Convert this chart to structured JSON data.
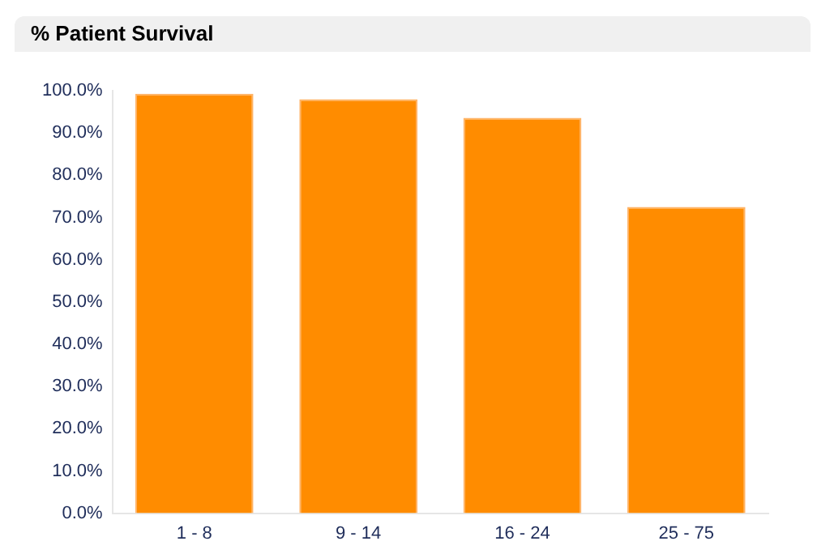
{
  "chart_data": {
    "type": "bar",
    "title": "% Patient Survival",
    "categories": [
      "1 - 8",
      "9 - 14",
      "16 - 24",
      "25 - 75"
    ],
    "values": [
      99.3,
      98,
      93.6,
      72.5
    ],
    "color": "#ff8c00",
    "ylim": [
      0,
      100
    ],
    "yticks": [
      {
        "value": 0,
        "label": "0.0%"
      },
      {
        "value": 10,
        "label": "10.0%"
      },
      {
        "value": 20,
        "label": "20.0%"
      },
      {
        "value": 30,
        "label": "30.0%"
      },
      {
        "value": 40,
        "label": "40.0%"
      },
      {
        "value": 50,
        "label": "50.0%"
      },
      {
        "value": 60,
        "label": "60.0%"
      },
      {
        "value": 70,
        "label": "70.0%"
      },
      {
        "value": 80,
        "label": "80.0%"
      },
      {
        "value": 90,
        "label": "90.0%"
      },
      {
        "value": 100,
        "label": "100.0%"
      }
    ],
    "grid": false,
    "legend": false
  }
}
